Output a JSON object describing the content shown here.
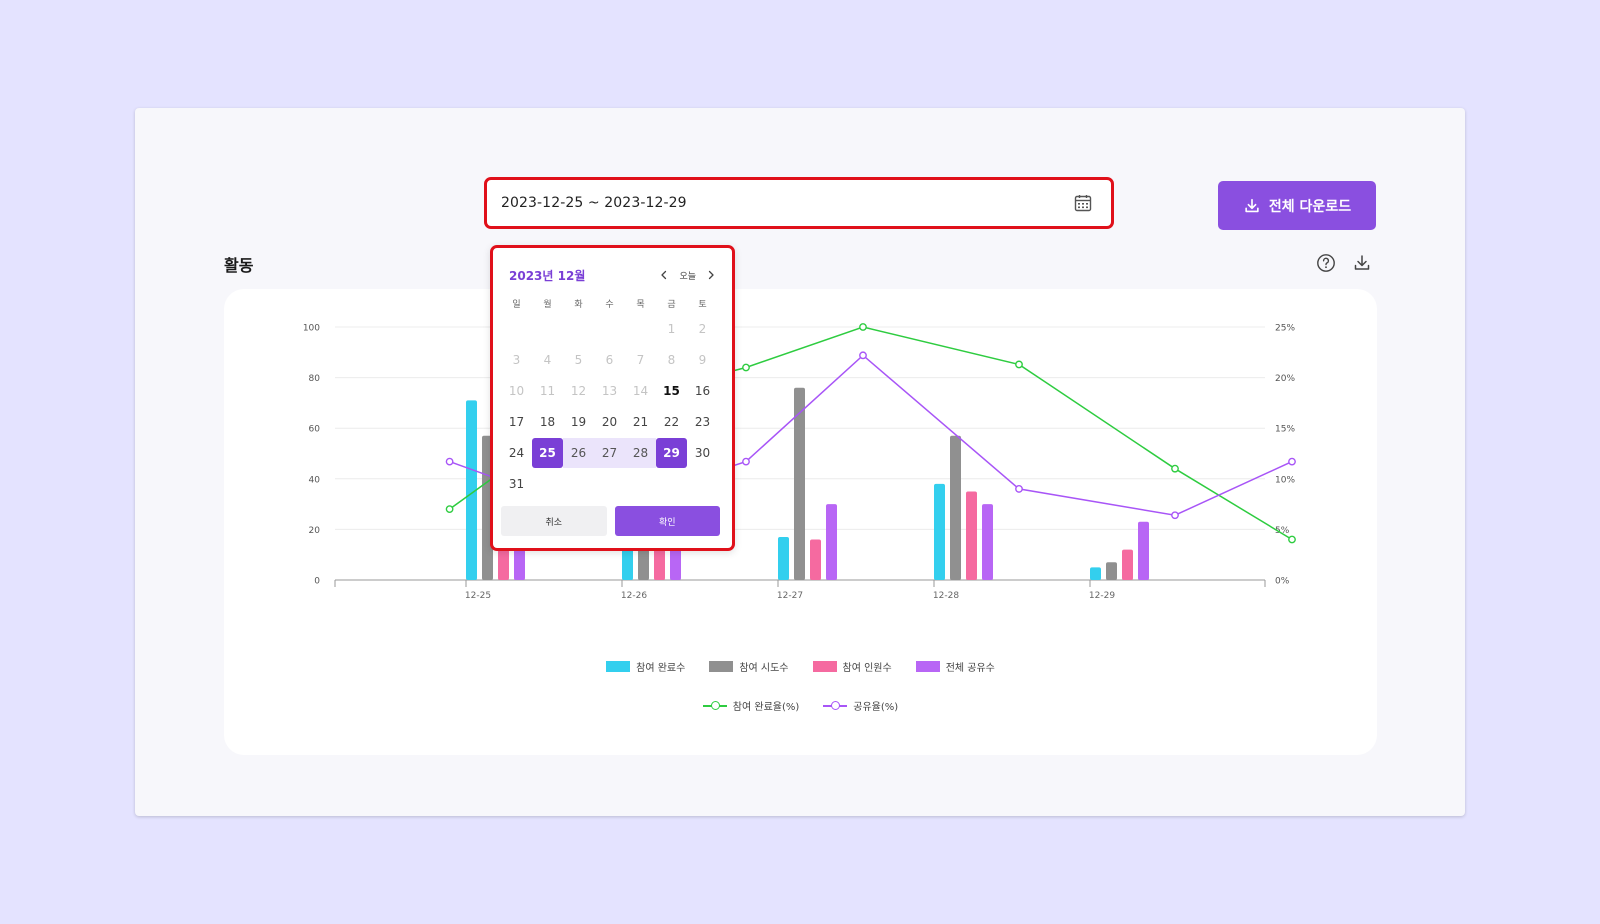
{
  "date_range": {
    "value": "2023-12-25 ~ 2023-12-29"
  },
  "toolbar": {
    "download_all_label": "전체 다운로드"
  },
  "section": {
    "title": "활동"
  },
  "calendar": {
    "month_label": "2023년 12월",
    "today_label": "오늘",
    "weekdays": [
      "일",
      "월",
      "화",
      "수",
      "목",
      "금",
      "토"
    ],
    "weeks": [
      [
        null,
        null,
        null,
        null,
        null,
        "1",
        "2"
      ],
      [
        "3",
        "4",
        "5",
        "6",
        "7",
        "8",
        "9"
      ],
      [
        "10",
        "11",
        "12",
        "13",
        "14",
        "15",
        "16"
      ],
      [
        "17",
        "18",
        "19",
        "20",
        "21",
        "22",
        "23"
      ],
      [
        "24",
        "25",
        "26",
        "27",
        "28",
        "29",
        "30"
      ],
      [
        "31",
        null,
        null,
        null,
        null,
        null,
        null
      ]
    ],
    "today": "15",
    "range_start": "25",
    "range_end": "29",
    "cancel_label": "취소",
    "confirm_label": "확인"
  },
  "colors": {
    "accent": "#8a4fe0",
    "highlight_border": "#e0101a",
    "series_completed": "#33cfee",
    "series_attempts": "#909090",
    "series_participants": "#f56aa0",
    "series_shares": "#b866f5",
    "line_completion_rate": "#2ecc40",
    "line_share_rate": "#a855f7"
  },
  "chart_data": {
    "type": "bar",
    "categories": [
      "12-25",
      "12-26",
      "12-27",
      "12-28",
      "12-29"
    ],
    "ylim": [
      0,
      100
    ],
    "y_ticks": [
      "0",
      "20",
      "40",
      "60",
      "80",
      "100"
    ],
    "y2lim": [
      0,
      25
    ],
    "y2_ticks": [
      "0%",
      "5%",
      "10%",
      "15%",
      "20%",
      "25%"
    ],
    "grid": true,
    "series": [
      {
        "name": "참여 완료수",
        "values": [
          71,
          15,
          17,
          38,
          5
        ]
      },
      {
        "name": "참여 시도수",
        "values": [
          57,
          20,
          76,
          57,
          7
        ]
      },
      {
        "name": "참여 인원수",
        "values": [
          30,
          25,
          16,
          35,
          12
        ]
      },
      {
        "name": "전체 공유수",
        "values": [
          28,
          22,
          30,
          30,
          23
        ]
      }
    ],
    "line_series": [
      {
        "name": "참여 완료율(%)",
        "axis": "right",
        "x": [
          -0.4,
          0.5,
          1.5,
          2.25,
          3.25,
          4.25,
          5.0
        ],
        "values": [
          7,
          17,
          21,
          25,
          21.3,
          11,
          4
        ]
      },
      {
        "name": "공유율(%)",
        "axis": "right",
        "x": [
          -0.4,
          0.5,
          1.5,
          2.25,
          3.25,
          4.25,
          5.0
        ],
        "values": [
          11.7,
          6.7,
          11.7,
          22.2,
          9,
          6.4,
          11.7
        ]
      }
    ]
  }
}
